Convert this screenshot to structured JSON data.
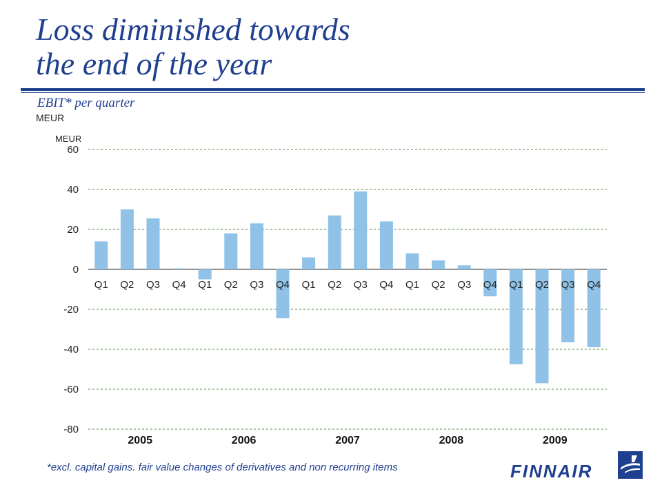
{
  "title_line1": "Loss diminished towards",
  "title_line2": "the end of the year",
  "subtitle": "EBIT* per quarter",
  "unit_label": "MEUR",
  "footnote": "*excl. capital gains. fair value changes of derivatives and non recurring items",
  "logo_text": "FINNAIR",
  "colors": {
    "bar": "#8fc2e6",
    "grid": "#4e8a3a",
    "title": "#1f3f8f"
  },
  "chart_data": {
    "type": "bar",
    "ylabel": "MEUR",
    "ylim": [
      -80,
      60
    ],
    "yticks": [
      60,
      40,
      20,
      0,
      -20,
      -40,
      -60,
      -80
    ],
    "grid": true,
    "categories": [
      "Q1",
      "Q2",
      "Q3",
      "Q4",
      "Q1",
      "Q2",
      "Q3",
      "Q4",
      "Q1",
      "Q2",
      "Q3",
      "Q4",
      "Q1",
      "Q2",
      "Q3",
      "Q4",
      "Q1",
      "Q2",
      "Q3",
      "Q4"
    ],
    "groups": [
      "2005",
      "2006",
      "2007",
      "2008",
      "2009"
    ],
    "values": [
      14,
      30,
      25.5,
      0.5,
      -5,
      18,
      23,
      -24.5,
      6,
      27,
      39,
      24,
      8,
      4.5,
      2,
      -13.5,
      -47.5,
      -57,
      -36.5,
      -39
    ]
  }
}
